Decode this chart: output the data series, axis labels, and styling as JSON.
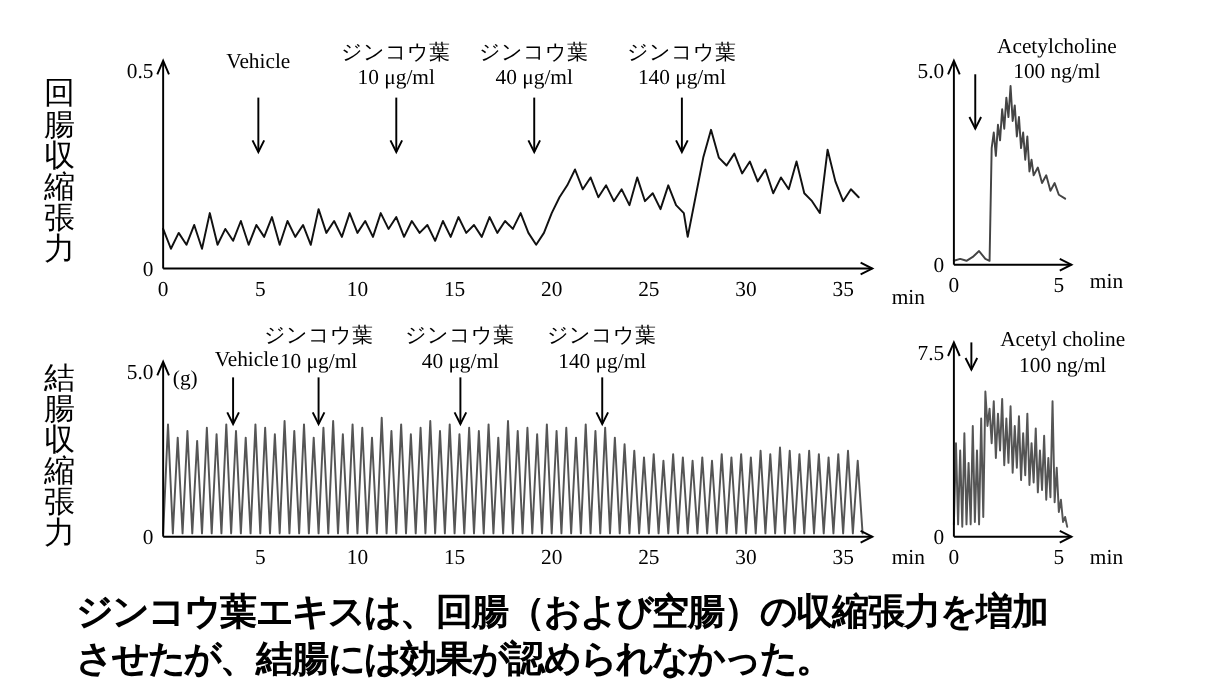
{
  "chart_data": [
    {
      "type": "line",
      "ylabel": "回腸収縮張力",
      "xlabel": "min",
      "xlim": [
        0,
        36.5
      ],
      "ylim": [
        0,
        0.5
      ],
      "xticks": [
        0,
        5,
        10,
        15,
        20,
        25,
        30,
        35
      ],
      "yticks": [
        0,
        0.5
      ],
      "x": [
        0,
        0.4,
        0.8,
        1.2,
        1.6,
        2.0,
        2.4,
        2.8,
        3.2,
        3.6,
        4.0,
        4.4,
        4.8,
        5.2,
        5.6,
        6.0,
        6.4,
        6.8,
        7.2,
        7.6,
        8.0,
        8.4,
        8.8,
        9.2,
        9.6,
        10.0,
        10.4,
        10.8,
        11.2,
        11.6,
        12.0,
        12.4,
        12.8,
        13.2,
        13.6,
        14.0,
        14.4,
        14.8,
        15.2,
        15.6,
        16.0,
        16.4,
        16.8,
        17.2,
        17.6,
        18.0,
        18.4,
        18.8,
        19.2,
        19.6,
        20.0,
        20.4,
        20.8,
        21.2,
        21.6,
        22.0,
        22.4,
        22.8,
        23.2,
        23.6,
        24.0,
        24.4,
        24.8,
        25.2,
        25.6,
        26.0,
        26.4,
        26.8,
        27.0,
        27.4,
        27.8,
        28.2,
        28.6,
        29.0,
        29.4,
        29.8,
        30.2,
        30.6,
        31.0,
        31.4,
        31.8,
        32.2,
        32.6,
        33.0,
        33.4,
        33.8,
        34.2,
        34.6,
        35.0,
        35.4,
        35.8
      ],
      "series": [
        {
          "color": "#111111",
          "values": [
            0.1,
            0.05,
            0.09,
            0.06,
            0.11,
            0.05,
            0.14,
            0.06,
            0.1,
            0.07,
            0.12,
            0.06,
            0.11,
            0.08,
            0.13,
            0.06,
            0.12,
            0.08,
            0.11,
            0.06,
            0.15,
            0.09,
            0.12,
            0.08,
            0.14,
            0.09,
            0.12,
            0.08,
            0.14,
            0.1,
            0.13,
            0.08,
            0.12,
            0.09,
            0.11,
            0.07,
            0.12,
            0.08,
            0.13,
            0.09,
            0.11,
            0.08,
            0.13,
            0.09,
            0.12,
            0.1,
            0.14,
            0.09,
            0.06,
            0.09,
            0.14,
            0.18,
            0.21,
            0.25,
            0.2,
            0.23,
            0.18,
            0.21,
            0.17,
            0.2,
            0.16,
            0.23,
            0.17,
            0.19,
            0.15,
            0.21,
            0.16,
            0.14,
            0.08,
            0.18,
            0.28,
            0.35,
            0.28,
            0.26,
            0.29,
            0.24,
            0.27,
            0.22,
            0.25,
            0.19,
            0.23,
            0.2,
            0.27,
            0.19,
            0.17,
            0.14,
            0.3,
            0.22,
            0.17,
            0.2,
            0.18
          ]
        }
      ],
      "annotations": [
        "Vehicle",
        "ジンコウ葉\n10 μg/ml",
        "ジンコウ葉\n40 μg/ml",
        "ジンコウ葉\n140 μg/ml",
        "ジンコウ葉エキスは、回腸（および空腸）の収縮張力を増加させたが、結腸には効果が認められなかった。"
      ]
    },
    {
      "type": "line",
      "xlabel": "min",
      "xlim": [
        0,
        5.6
      ],
      "ylim": [
        0,
        5.0
      ],
      "xticks": [
        0,
        5
      ],
      "yticks": [
        0,
        {
          "value": 5,
          "label": "5.0"
        }
      ],
      "x": [
        0,
        0.3,
        0.6,
        0.9,
        1.2,
        1.5,
        1.7,
        1.8,
        1.9,
        2.0,
        2.1,
        2.2,
        2.3,
        2.4,
        2.5,
        2.6,
        2.7,
        2.8,
        2.9,
        3.0,
        3.1,
        3.2,
        3.3,
        3.4,
        3.5,
        3.6,
        3.7,
        3.8,
        4.0,
        4.2,
        4.4,
        4.6,
        4.8,
        5.0,
        5.3
      ],
      "series": [
        {
          "color": "#444444",
          "values": [
            0.1,
            0.15,
            0.1,
            0.2,
            0.35,
            0.15,
            0.1,
            3.0,
            3.4,
            2.8,
            3.6,
            3.2,
            4.0,
            3.5,
            4.3,
            3.8,
            4.6,
            3.7,
            4.1,
            3.3,
            3.8,
            3.0,
            3.4,
            2.7,
            3.3,
            2.4,
            2.7,
            2.3,
            2.5,
            2.1,
            2.3,
            1.9,
            2.1,
            1.8,
            1.7
          ]
        }
      ],
      "annotations": [
        "Acetylcholine\n100 ng/ml"
      ]
    },
    {
      "type": "line",
      "ylabel": "結腸収縮張力",
      "xlabel": "min",
      "xlim": [
        0,
        36.5
      ],
      "ylim": [
        0,
        5.0
      ],
      "xticks": [
        5,
        10,
        15,
        20,
        25,
        30,
        35
      ],
      "yticks": [
        0,
        {
          "value": 5,
          "label": "5.0"
        }
      ],
      "x": [
        0,
        0.25,
        0.5,
        0.75,
        1,
        1.25,
        1.5,
        1.75,
        2,
        2.25,
        2.5,
        2.75,
        3,
        3.25,
        3.5,
        3.75,
        4,
        4.25,
        4.5,
        4.75,
        5,
        5.25,
        5.5,
        5.75,
        6,
        6.25,
        6.5,
        6.75,
        7,
        7.25,
        7.5,
        7.75,
        8,
        8.25,
        8.5,
        8.75,
        9,
        9.25,
        9.5,
        9.75,
        10,
        10.25,
        10.5,
        10.75,
        11,
        11.25,
        11.5,
        11.75,
        12,
        12.25,
        12.5,
        12.75,
        13,
        13.25,
        13.5,
        13.75,
        14,
        14.25,
        14.5,
        14.75,
        15,
        15.25,
        15.5,
        15.75,
        16,
        16.25,
        16.5,
        16.75,
        17,
        17.25,
        17.5,
        17.75,
        18,
        18.25,
        18.5,
        18.75,
        19,
        19.25,
        19.5,
        19.75,
        20,
        20.25,
        20.5,
        20.75,
        21,
        21.25,
        21.5,
        21.75,
        22,
        22.25,
        22.5,
        22.75,
        23,
        23.25,
        23.5,
        23.75,
        24,
        24.25,
        24.5,
        24.75,
        25,
        25.25,
        25.5,
        25.75,
        26,
        26.25,
        26.5,
        26.75,
        27,
        27.25,
        27.5,
        27.75,
        28,
        28.25,
        28.5,
        28.75,
        29,
        29.25,
        29.5,
        29.75,
        30,
        30.25,
        30.5,
        30.75,
        31,
        31.25,
        31.5,
        31.75,
        32,
        32.25,
        32.5,
        32.75,
        33,
        33.25,
        33.5,
        33.75,
        34,
        34.25,
        34.5,
        34.75,
        35,
        35.25,
        35.5,
        35.75,
        36
      ],
      "series": [
        {
          "color": "#555555",
          "values": [
            0.1,
            3.4,
            0.1,
            3.0,
            0.1,
            3.2,
            0.1,
            2.9,
            0.1,
            3.3,
            0.1,
            3.1,
            0.1,
            3.4,
            0.1,
            3.2,
            0.1,
            3.0,
            0.1,
            3.4,
            0.1,
            3.3,
            0.1,
            3.1,
            0.1,
            3.5,
            0.1,
            3.2,
            0.1,
            3.4,
            0.1,
            3.0,
            0.1,
            3.3,
            0.1,
            3.5,
            0.1,
            3.1,
            0.1,
            3.4,
            0.1,
            3.3,
            0.1,
            3.0,
            0.1,
            3.6,
            0.1,
            3.2,
            0.1,
            3.4,
            0.1,
            3.1,
            0.1,
            3.3,
            0.1,
            3.5,
            0.1,
            3.2,
            0.1,
            3.4,
            0.1,
            3.1,
            0.1,
            3.3,
            0.1,
            3.2,
            0.1,
            3.4,
            0.1,
            3.0,
            0.1,
            3.5,
            0.1,
            3.2,
            0.1,
            3.3,
            0.1,
            3.1,
            0.1,
            3.4,
            0.1,
            3.2,
            0.1,
            3.3,
            0.1,
            3.0,
            0.1,
            3.4,
            0.1,
            3.2,
            0.1,
            3.3,
            0.1,
            3.0,
            0.1,
            2.8,
            0.1,
            2.6,
            0.1,
            2.4,
            0.1,
            2.5,
            0.1,
            2.3,
            0.1,
            2.5,
            0.1,
            2.4,
            0.1,
            2.3,
            0.1,
            2.4,
            0.1,
            2.3,
            0.1,
            2.5,
            0.1,
            2.4,
            0.1,
            2.5,
            0.1,
            2.4,
            0.1,
            2.6,
            0.1,
            2.5,
            0.1,
            2.7,
            0.1,
            2.6,
            0.1,
            2.5,
            0.1,
            2.6,
            0.1,
            2.5,
            0.1,
            2.4,
            0.1,
            2.5,
            0.1,
            2.6,
            0.1,
            2.3,
            0.1
          ]
        }
      ],
      "annotations": [
        "Vehicle",
        "ジンコウ葉\n10 μg/ml",
        "ジンコウ葉\n40 μg/ml",
        "ジンコウ葉\n140 μg/ml",
        "(g)"
      ]
    },
    {
      "type": "line",
      "xlabel": "min",
      "xlim": [
        0,
        5.6
      ],
      "ylim": [
        0,
        7.5
      ],
      "xticks": [
        0,
        5
      ],
      "yticks": [
        0,
        7.5
      ],
      "x": [
        0,
        0.1,
        0.2,
        0.3,
        0.4,
        0.5,
        0.6,
        0.7,
        0.8,
        0.9,
        1.0,
        1.1,
        1.2,
        1.3,
        1.4,
        1.5,
        1.6,
        1.7,
        1.8,
        1.9,
        2.0,
        2.1,
        2.2,
        2.3,
        2.4,
        2.5,
        2.6,
        2.7,
        2.8,
        2.9,
        3.0,
        3.1,
        3.2,
        3.3,
        3.4,
        3.5,
        3.6,
        3.7,
        3.8,
        3.9,
        4.0,
        4.1,
        4.2,
        4.3,
        4.4,
        4.5,
        4.6,
        4.7,
        4.8,
        4.9,
        5.0,
        5.1,
        5.2,
        5.3,
        5.4
      ],
      "series": [
        {
          "color": "#555555",
          "values": [
            0.5,
            3.8,
            0.5,
            3.5,
            0.4,
            4.2,
            0.5,
            3.0,
            0.5,
            4.5,
            0.6,
            3.5,
            0.5,
            4.8,
            0.8,
            5.9,
            4.5,
            5.2,
            3.8,
            5.5,
            3.2,
            5.0,
            3.5,
            5.6,
            2.9,
            4.8,
            3.0,
            5.3,
            2.6,
            4.5,
            2.8,
            4.9,
            2.3,
            4.2,
            2.5,
            5.0,
            2.1,
            3.8,
            2.2,
            4.4,
            1.8,
            3.5,
            1.9,
            4.1,
            1.5,
            3.2,
            1.6,
            5.5,
            1.4,
            2.8,
            1.0,
            1.5,
            0.6,
            0.8,
            0.4
          ]
        }
      ],
      "annotations": [
        "Acetyl choline\n100 ng/ml"
      ]
    }
  ]
}
